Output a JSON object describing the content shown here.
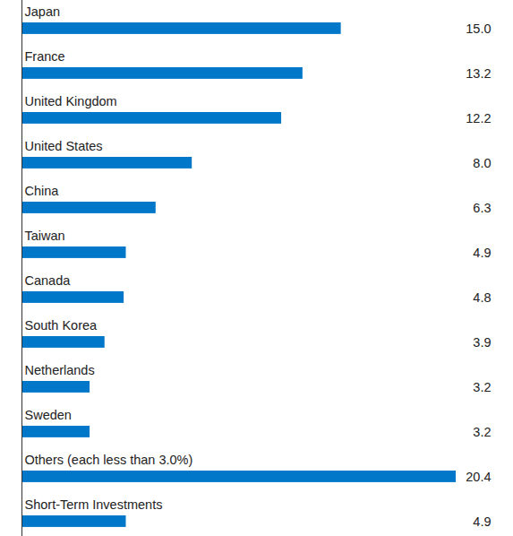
{
  "chart_data": {
    "type": "bar",
    "orientation": "horizontal",
    "categories": [
      "Japan",
      "France",
      "United Kingdom",
      "United States",
      "China",
      "Taiwan",
      "Canada",
      "South Korea",
      "Netherlands",
      "Sweden",
      "Others (each less than 3.0%)",
      "Short-Term Investments"
    ],
    "values": [
      15.0,
      13.2,
      12.2,
      8.0,
      6.3,
      4.9,
      4.8,
      3.9,
      3.2,
      3.2,
      20.4,
      4.9
    ],
    "value_labels": [
      "15.0",
      "13.2",
      "12.2",
      "8.0",
      "6.3",
      "4.9",
      "4.8",
      "3.9",
      "3.2",
      "3.2",
      "20.4",
      "4.9"
    ],
    "color": "#0077c8",
    "xlim": [
      0,
      20.4
    ],
    "xticks": [],
    "data_labels": true,
    "tick_labels": false,
    "grid": false
  }
}
